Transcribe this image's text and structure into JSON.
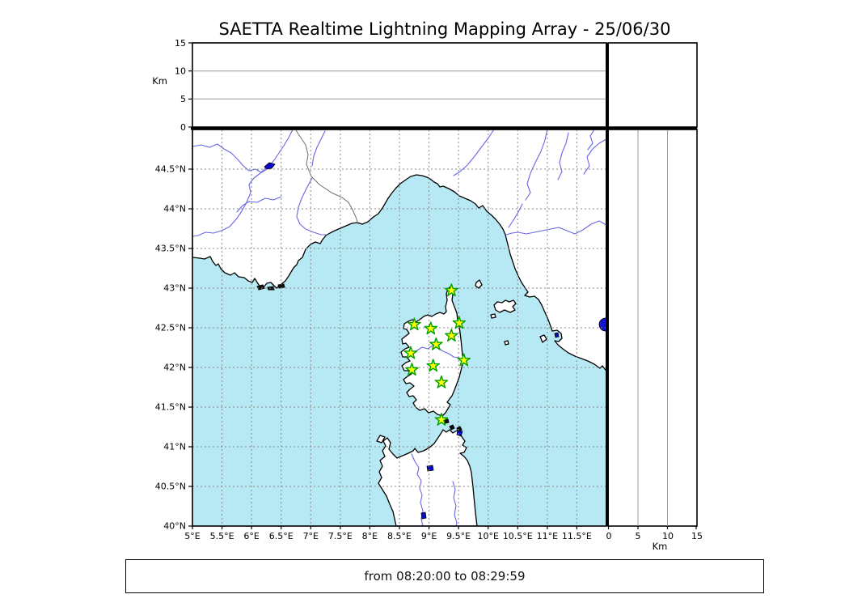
{
  "title": "SAETTA Realtime Lightning Mapping Array - 25/06/30",
  "footer": {
    "time_range": "from 08:20:00 to 08:29:59"
  },
  "altitude_panel": {
    "unit_label": "Km",
    "ticks": [
      "0",
      "5",
      "10",
      "15"
    ]
  },
  "right_panel": {
    "unit_label": "Km",
    "ticks": [
      "0",
      "5",
      "10",
      "15"
    ]
  },
  "map": {
    "lat_ticks": [
      "44.5°N",
      "44°N",
      "43.5°N",
      "43°N",
      "42.5°N",
      "42°N",
      "41.5°N",
      "41°N",
      "40.5°N",
      "40°N"
    ],
    "lon_ticks": [
      "5°E",
      "5.5°E",
      "6°E",
      "6.5°E",
      "7°E",
      "7.5°E",
      "8°E",
      "8.5°E",
      "9°E",
      "9.5°E",
      "10°E",
      "10.5°E",
      "11°E",
      "11.5°E"
    ]
  },
  "colors": {
    "sea": "#b7e9f5",
    "land": "#ffffff",
    "river": "#6767e6",
    "lake": "#0a0acc",
    "grid": "#878787",
    "star_fill": "#ffff00",
    "star_edge": "#00a000"
  },
  "chart_data": {
    "type": "scatter",
    "title": "SAETTA Realtime Lightning Mapping Array - 25/06/30",
    "time_window": "from 08:20:00 to 08:29:59",
    "map_extent": {
      "lon_deg_e": [
        5,
        12
      ],
      "lat_deg_n": [
        40,
        45
      ]
    },
    "lon_tick_step_deg": 0.5,
    "lat_tick_step_deg": 0.5,
    "altitude_axis_km": {
      "range": [
        0,
        15
      ],
      "gridlines": [
        5,
        10
      ],
      "unit": "Km"
    },
    "stations_marker": "green-edged yellow star",
    "stations": [
      {
        "lon": 9.38,
        "lat": 42.97
      },
      {
        "lon": 8.75,
        "lat": 42.54
      },
      {
        "lon": 9.03,
        "lat": 42.49
      },
      {
        "lon": 9.51,
        "lat": 42.56
      },
      {
        "lon": 9.38,
        "lat": 42.4
      },
      {
        "lon": 9.12,
        "lat": 42.29
      },
      {
        "lon": 8.69,
        "lat": 42.18
      },
      {
        "lon": 9.59,
        "lat": 42.09
      },
      {
        "lon": 9.07,
        "lat": 42.02
      },
      {
        "lon": 8.71,
        "lat": 41.97
      },
      {
        "lon": 9.21,
        "lat": 41.81
      },
      {
        "lon": 9.21,
        "lat": 41.34
      }
    ],
    "lightning_detections": []
  }
}
